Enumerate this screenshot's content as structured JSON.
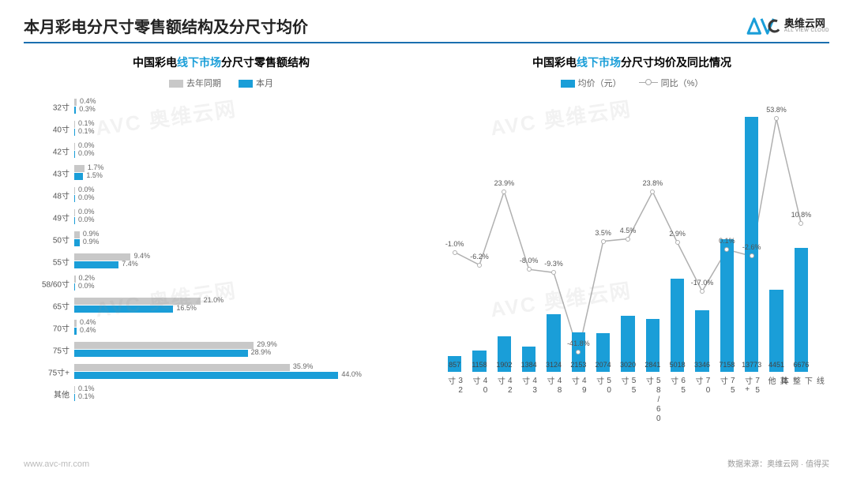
{
  "header": {
    "title": "本月彩电分尺寸零售额结构及分尺寸均价",
    "logo_cn": "奥维云网",
    "logo_en": "ALL VIEW CLOUD"
  },
  "footer": {
    "left": "www.avc-mr.com",
    "right_prefix": "数据来源：奥维云网",
    "right_suffix": "值得买"
  },
  "colors": {
    "accent": "#1a9ed8",
    "accent_dark": "#1a6fb0",
    "gray_bar": "#c8c8c8",
    "line": "#b0b0b0",
    "text": "#555555"
  },
  "left_chart": {
    "title_pre": "中国彩电",
    "title_hl": "线下市场",
    "title_post": "分尺寸零售额结构",
    "legend_a": "去年同期",
    "legend_b": "本月",
    "series_a_color": "#c8c8c8",
    "series_b_color": "#1a9ed8",
    "max_value": 50,
    "categories": [
      "32寸",
      "40寸",
      "42寸",
      "43寸",
      "48寸",
      "49寸",
      "50寸",
      "55寸",
      "58/60寸",
      "65寸",
      "70寸",
      "75寸",
      "75寸+",
      "其他"
    ],
    "series_a": [
      0.4,
      0.1,
      0.0,
      1.7,
      0.0,
      0.0,
      0.9,
      9.4,
      0.2,
      21.0,
      0.4,
      29.9,
      35.9,
      0.1
    ],
    "series_b": [
      0.3,
      0.1,
      0.0,
      1.5,
      0.0,
      0.0,
      0.9,
      7.4,
      0.0,
      16.5,
      0.4,
      28.9,
      44.0,
      0.1
    ]
  },
  "right_chart": {
    "title_pre": "中国彩电",
    "title_hl": "线下市场",
    "title_post": "分尺寸均价及同比情况",
    "legend_bar": "均价（元）",
    "legend_line": "同比（%）",
    "bar_color": "#1a9ed8",
    "line_color": "#b0b0b0",
    "categories": [
      "32寸",
      "40寸",
      "42寸",
      "43寸",
      "48寸",
      "49寸",
      "50寸",
      "55寸",
      "58/60寸",
      "65寸",
      "70寸",
      "75寸",
      "75寸+",
      "其他",
      "线下整体"
    ],
    "bar_values": [
      857,
      1158,
      1902,
      1384,
      3124,
      2153,
      2074,
      3020,
      2841,
      5018,
      3346,
      7158,
      13773,
      4451,
      6676
    ],
    "bar_max": 14500,
    "line_values": [
      -1.0,
      -6.2,
      23.9,
      -8.0,
      -9.3,
      -41.8,
      3.5,
      4.5,
      23.8,
      2.9,
      -17.0,
      0.1,
      -2.6,
      53.8,
      10.8
    ],
    "line_min": -50,
    "line_max": 60
  },
  "watermark": "AVC 奥维云网"
}
